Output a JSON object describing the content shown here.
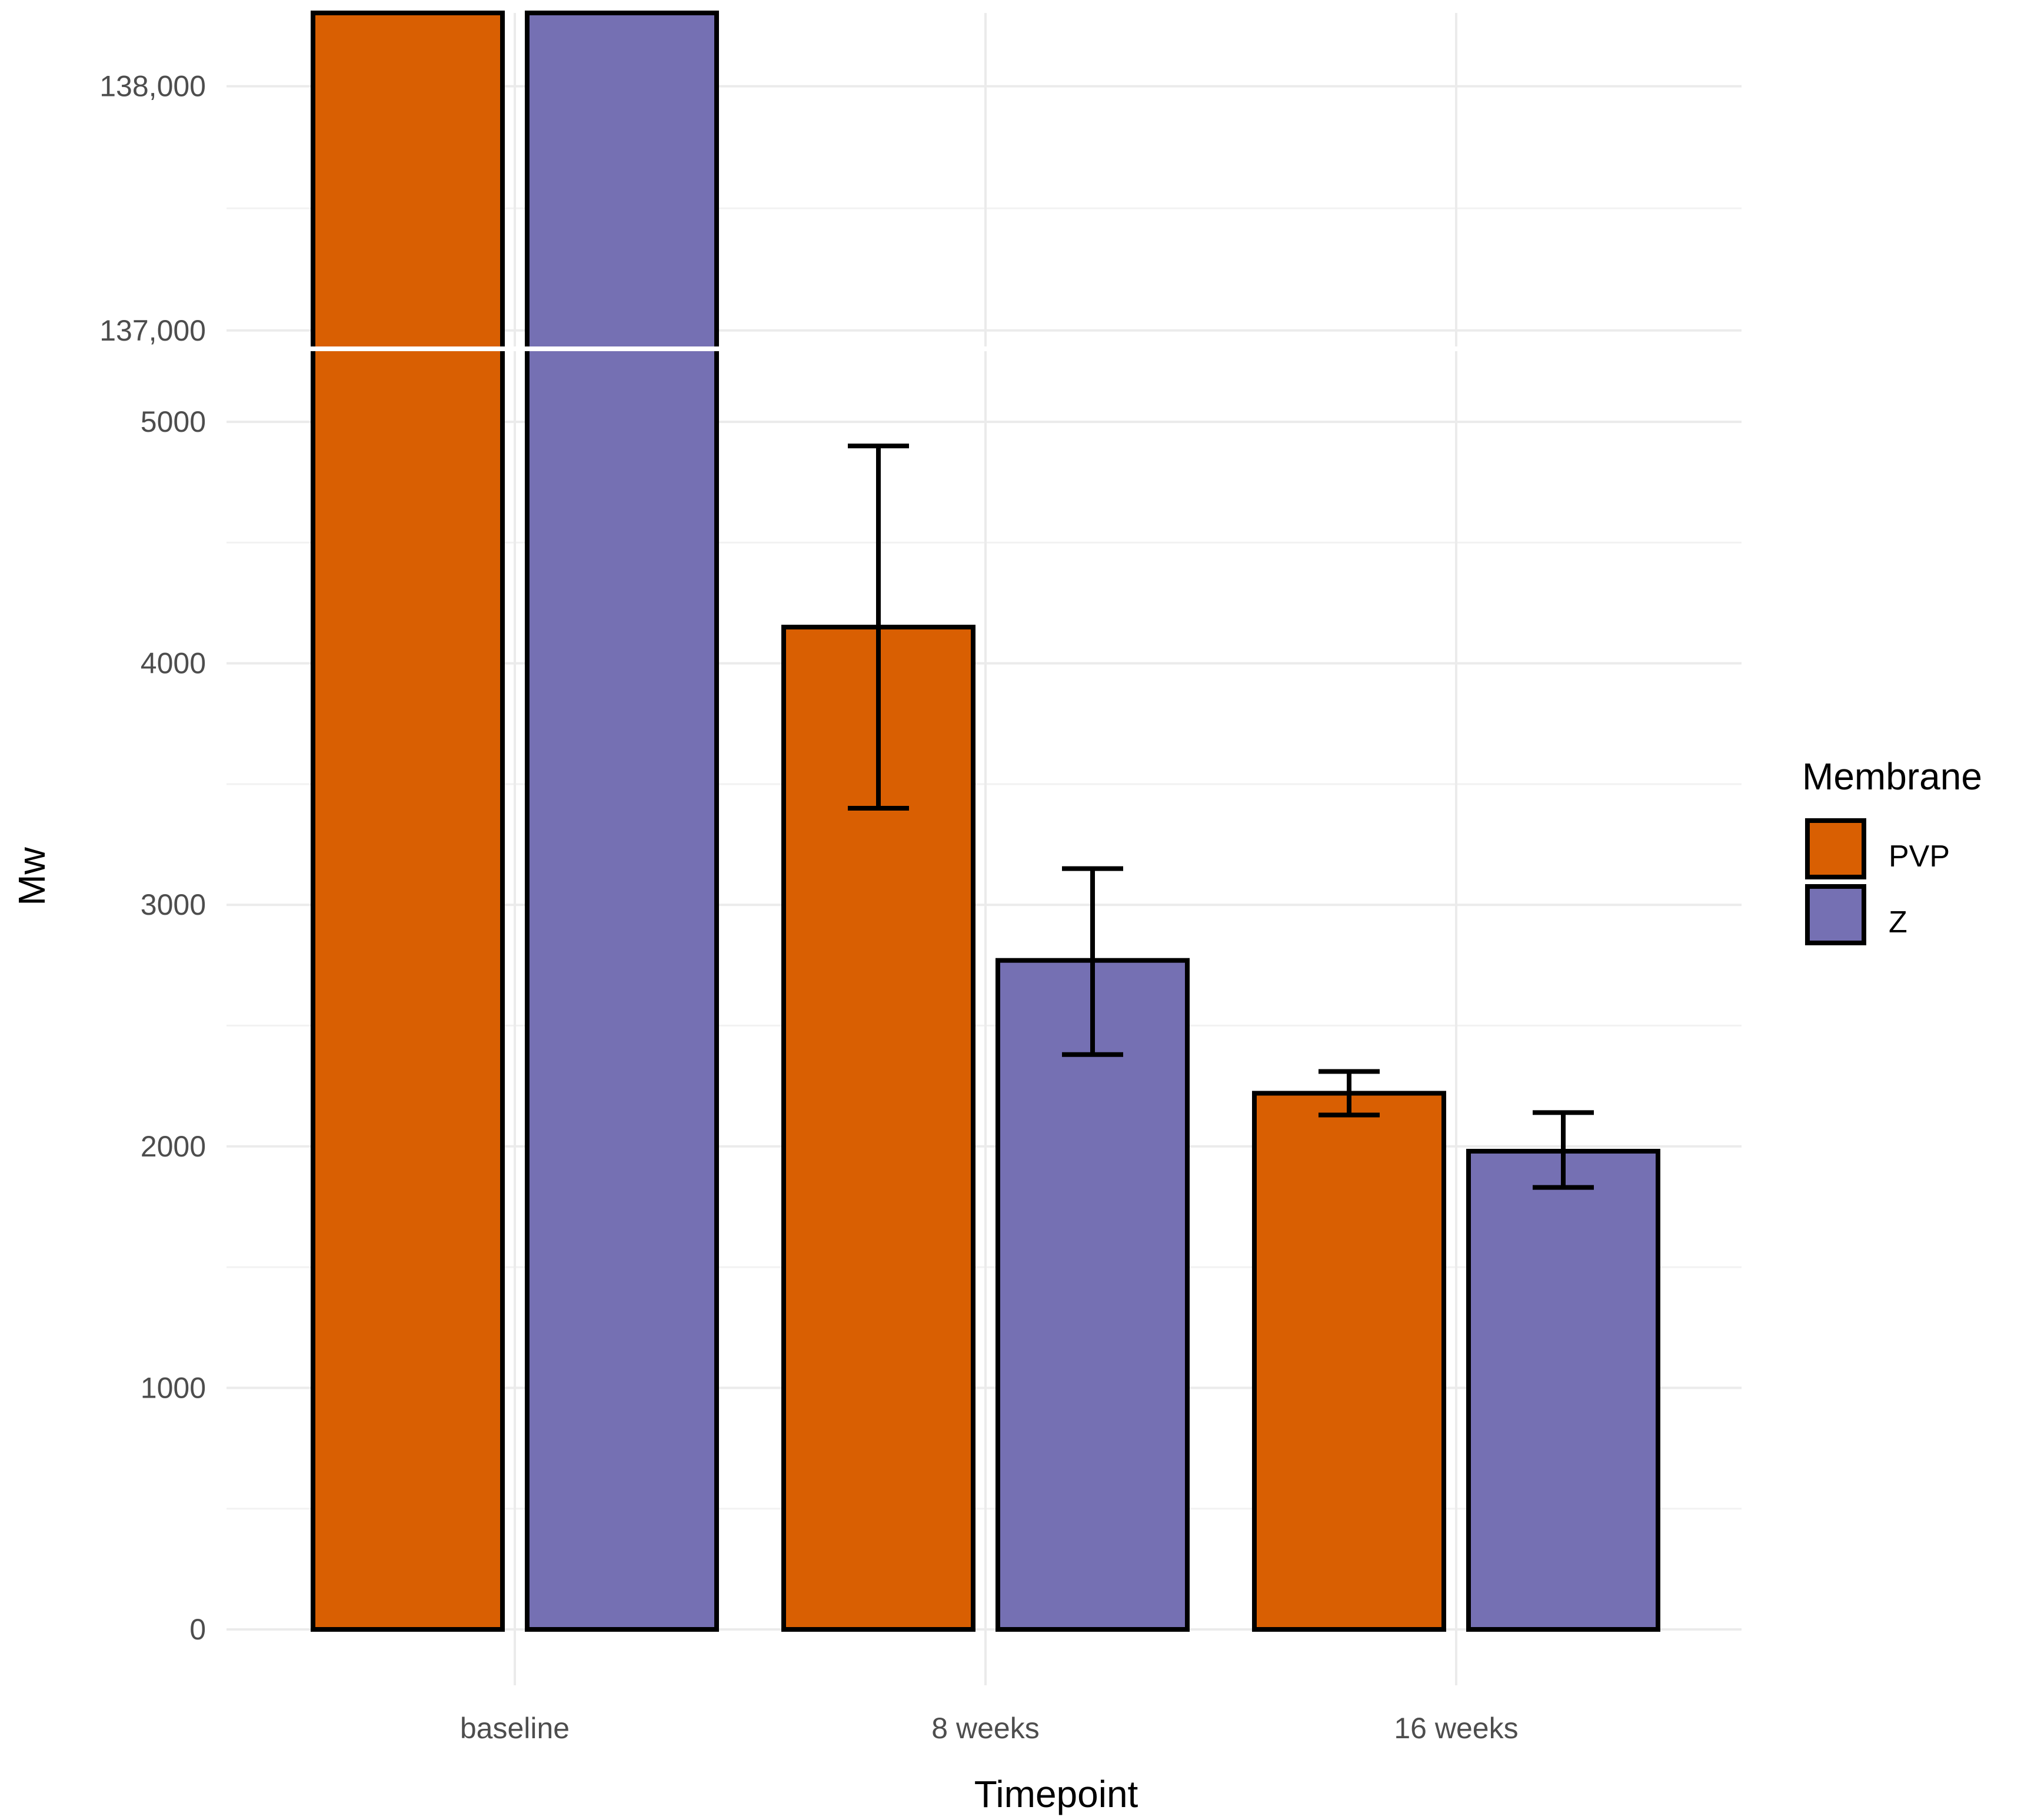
{
  "chart_data": {
    "type": "bar",
    "xlabel": "Timepoint",
    "ylabel": "Mw",
    "categories": [
      "baseline",
      "8 weeks",
      "16 weeks"
    ],
    "series": [
      {
        "name": "PVP",
        "color": "#D95F02",
        "values": [
          138300,
          4150,
          2220
        ],
        "error_low": [
          null,
          3400,
          2130
        ],
        "error_high": [
          null,
          4900,
          2310
        ]
      },
      {
        "name": "Z",
        "color": "#7570B3",
        "values": [
          138300,
          2770,
          1980
        ],
        "error_low": [
          null,
          2380,
          1830
        ],
        "error_high": [
          null,
          3150,
          2140
        ]
      }
    ],
    "y_axis_lower": {
      "ylim": [
        0,
        5290
      ],
      "ticks": [
        0,
        1000,
        2000,
        3000,
        4000,
        5000
      ],
      "tick_labels": [
        "0",
        "1000",
        "2000",
        "3000",
        "4000",
        "5000"
      ]
    },
    "y_axis_upper": {
      "ylim": [
        136920,
        138300
      ],
      "ticks": [
        137000,
        138000
      ],
      "tick_labels": [
        "137,000",
        "138,000"
      ]
    },
    "legend": {
      "title": "Membrane",
      "position": "right",
      "items": [
        {
          "label": "PVP",
          "color": "#D95F02"
        },
        {
          "label": "Z",
          "color": "#7570B3"
        }
      ]
    },
    "grid": true
  }
}
